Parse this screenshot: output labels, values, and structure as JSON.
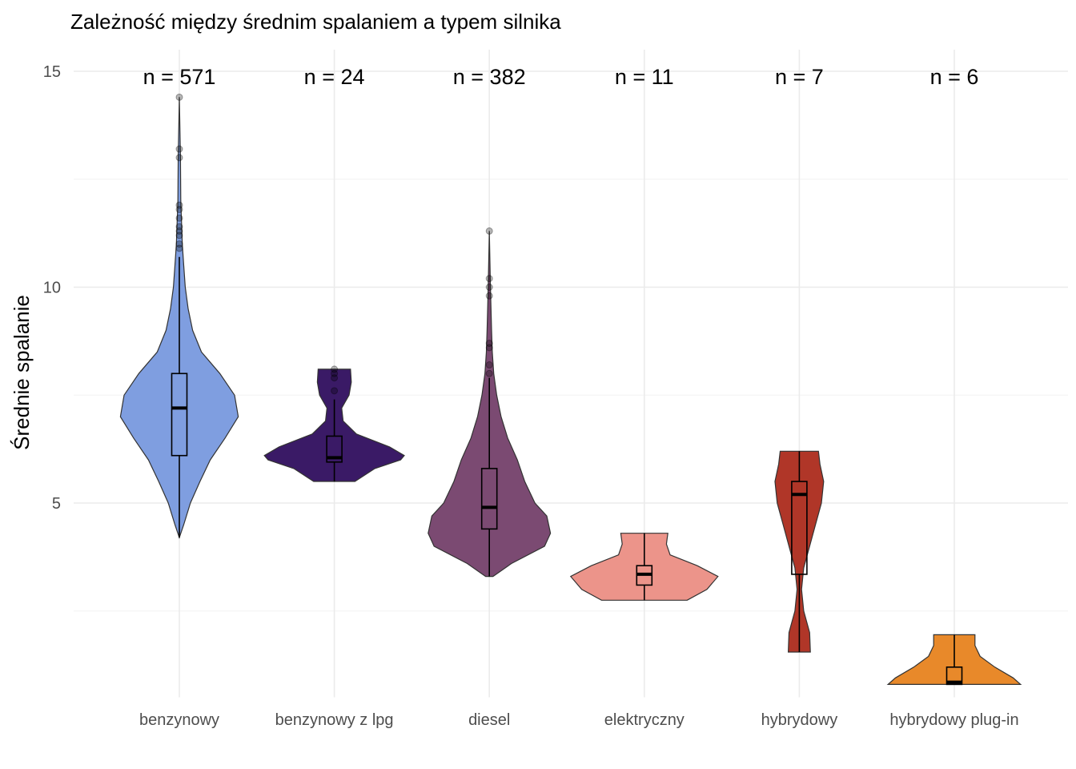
{
  "chart_data": {
    "type": "violin",
    "title": "Zależność między średnim spalaniem a typem silnika",
    "xlabel": "",
    "ylabel": "Średnie spalanie",
    "ylim": [
      0.5,
      15.5
    ],
    "yticks": [
      5,
      10,
      15
    ],
    "grid": true,
    "legend": "none",
    "categories": [
      "benzynowy",
      "benzynowy z lpg",
      "diesel",
      "elektryczny",
      "hybrydowy",
      "hybrydowy plug-in"
    ],
    "series": [
      {
        "category": "benzynowy",
        "color": "#7f9ee0",
        "n_label": "n = 571",
        "min": 4.2,
        "max": 14.4,
        "box": {
          "lower_whisker": 4.2,
          "q1": 6.1,
          "median": 7.2,
          "q3": 8.0,
          "upper_whisker": 10.7
        },
        "outliers": [
          10.9,
          11.0,
          11.2,
          11.3,
          11.4,
          11.6,
          11.8,
          11.9,
          13.0,
          13.2,
          14.4
        ],
        "density": [
          [
            4.2,
            0.0
          ],
          [
            4.5,
            0.06
          ],
          [
            5.0,
            0.15
          ],
          [
            5.5,
            0.28
          ],
          [
            6.0,
            0.42
          ],
          [
            6.5,
            0.62
          ],
          [
            7.0,
            0.8
          ],
          [
            7.5,
            0.75
          ],
          [
            8.0,
            0.55
          ],
          [
            8.5,
            0.3
          ],
          [
            9.0,
            0.18
          ],
          [
            9.5,
            0.12
          ],
          [
            10.0,
            0.08
          ],
          [
            10.5,
            0.06
          ],
          [
            11.0,
            0.04
          ],
          [
            12.0,
            0.02
          ],
          [
            13.0,
            0.015
          ],
          [
            14.4,
            0.0
          ]
        ]
      },
      {
        "category": "benzynowy z lpg",
        "color": "#3a1a66",
        "n_label": "n = 24",
        "min": 5.5,
        "max": 8.1,
        "box": {
          "lower_whisker": 5.5,
          "q1": 5.95,
          "median": 6.05,
          "q3": 6.55,
          "upper_whisker": 7.4
        },
        "outliers": [
          7.6,
          7.9,
          8.0,
          8.1
        ],
        "density": [
          [
            5.5,
            0.28
          ],
          [
            5.8,
            0.55
          ],
          [
            6.0,
            0.9
          ],
          [
            6.1,
            0.95
          ],
          [
            6.3,
            0.75
          ],
          [
            6.6,
            0.3
          ],
          [
            6.9,
            0.12
          ],
          [
            7.2,
            0.1
          ],
          [
            7.5,
            0.2
          ],
          [
            7.8,
            0.23
          ],
          [
            8.1,
            0.22
          ]
        ]
      },
      {
        "category": "diesel",
        "color": "#7b4a72",
        "n_label": "n = 382",
        "min": 3.3,
        "max": 11.3,
        "box": {
          "lower_whisker": 3.3,
          "q1": 4.4,
          "median": 4.9,
          "q3": 5.8,
          "upper_whisker": 7.9
        },
        "outliers": [
          8.0,
          8.2,
          8.6,
          8.7,
          9.8,
          10.0,
          10.2,
          11.3
        ],
        "density": [
          [
            3.3,
            0.05
          ],
          [
            3.6,
            0.3
          ],
          [
            4.0,
            0.75
          ],
          [
            4.3,
            0.83
          ],
          [
            4.7,
            0.78
          ],
          [
            5.0,
            0.62
          ],
          [
            5.5,
            0.48
          ],
          [
            6.0,
            0.38
          ],
          [
            6.5,
            0.25
          ],
          [
            7.0,
            0.16
          ],
          [
            7.5,
            0.1
          ],
          [
            8.0,
            0.06
          ],
          [
            8.5,
            0.04
          ],
          [
            9.0,
            0.03
          ],
          [
            10.0,
            0.015
          ],
          [
            11.3,
            0.0
          ]
        ]
      },
      {
        "category": "elektryczny",
        "color": "#ec948a",
        "n_label": "n = 11",
        "min": 2.75,
        "max": 4.3,
        "box": {
          "lower_whisker": 2.75,
          "q1": 3.1,
          "median": 3.35,
          "q3": 3.55,
          "upper_whisker": 4.3
        },
        "outliers": [],
        "density": [
          [
            2.75,
            0.58
          ],
          [
            3.0,
            0.85
          ],
          [
            3.3,
            1.0
          ],
          [
            3.55,
            0.72
          ],
          [
            3.8,
            0.35
          ],
          [
            4.05,
            0.3
          ],
          [
            4.3,
            0.32
          ]
        ]
      },
      {
        "category": "hybrydowy",
        "color": "#b03628",
        "n_label": "n = 7",
        "min": 1.55,
        "max": 6.2,
        "box": {
          "lower_whisker": 1.55,
          "q1": 3.35,
          "median": 5.2,
          "q3": 5.5,
          "upper_whisker": 6.2
        },
        "outliers": [],
        "density": [
          [
            1.55,
            0.15
          ],
          [
            2.0,
            0.14
          ],
          [
            2.5,
            0.06
          ],
          [
            3.0,
            0.03
          ],
          [
            3.5,
            0.06
          ],
          [
            4.0,
            0.14
          ],
          [
            4.5,
            0.22
          ],
          [
            5.0,
            0.3
          ],
          [
            5.5,
            0.33
          ],
          [
            5.9,
            0.28
          ],
          [
            6.2,
            0.26
          ]
        ]
      },
      {
        "category": "hybrydowy plug-in",
        "color": "#e8892a",
        "n_label": "n = 6",
        "min": 0.8,
        "max": 1.95,
        "box": {
          "lower_whisker": 0.8,
          "q1": 0.8,
          "median": 0.85,
          "q3": 1.2,
          "upper_whisker": 1.95
        },
        "outliers": [],
        "density": [
          [
            0.8,
            0.9
          ],
          [
            0.95,
            0.8
          ],
          [
            1.2,
            0.55
          ],
          [
            1.45,
            0.35
          ],
          [
            1.7,
            0.28
          ],
          [
            1.95,
            0.28
          ]
        ]
      }
    ]
  }
}
